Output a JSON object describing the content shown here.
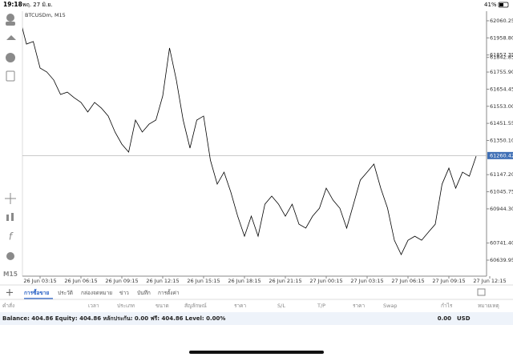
{
  "status_bar": {
    "time": "19:18",
    "date": "พฤ. 27 มิ.ย.",
    "battery": "41%"
  },
  "toolbar": {
    "timeframe": "M15"
  },
  "chart_data": {
    "type": "line",
    "title": "BTCUSDm, M15",
    "color": "#000000",
    "categories": [
      null,
      null,
      null,
      "26 Jun 03:15",
      null,
      null,
      null,
      null,
      null,
      "26 Jun 06:15",
      null,
      null,
      null,
      null,
      null,
      "26 Jun 09:15",
      null,
      null,
      null,
      null,
      null,
      "26 Jun 12:15",
      null,
      null,
      null,
      null,
      null,
      "26 Jun 15:15",
      null,
      null,
      null,
      null,
      null,
      "26 Jun 18:15",
      null,
      null,
      null,
      null,
      null,
      "26 Jun 21:15",
      null,
      null,
      null,
      null,
      null,
      "27 Jun 00:15",
      null,
      null,
      null,
      null,
      null,
      "27 Jun 03:15",
      null,
      null,
      null,
      null,
      null,
      "27 Jun 06:15",
      null,
      null,
      null,
      null,
      null,
      "27 Jun 09:15",
      null,
      null,
      null,
      null,
      null,
      "27 Jun 12:15"
    ],
    "values": [
      62079,
      61922,
      61937,
      61780,
      61756,
      61709,
      61623,
      61637,
      61604,
      61576,
      61519,
      61576,
      61542,
      61495,
      61400,
      61328,
      61281,
      61471,
      61400,
      61447,
      61471,
      61614,
      61899,
      61709,
      61471,
      61305,
      61471,
      61495,
      61233,
      61091,
      61162,
      61043,
      60901,
      60782,
      60901,
      60782,
      60972,
      61020,
      60972,
      60901,
      60972,
      60853,
      60830,
      60901,
      60948,
      61067,
      60996,
      60948,
      60830,
      60972,
      61115,
      61162,
      61210,
      61067,
      60948,
      60758,
      60673,
      60758,
      60782,
      60758,
      60806,
      60853,
      61091,
      61186,
      61067,
      61162,
      61138,
      61257,
      null,
      null
    ],
    "ylim": [
      60545,
      62117
    ],
    "yticks": [
      62060.25,
      {
        "value": 61958.8,
        "label": "61958.80"
      },
      61857.35,
      {
        "value": 61755.9,
        "label": "61755.90"
      },
      61654.45,
      {
        "value": 61553,
        "label": "61553.00"
      },
      61451.55,
      {
        "value": 61350.1,
        "label": "61350.10"
      },
      {
        "value": 61147.2,
        "label": "61147.20"
      },
      61045.75,
      {
        "value": 60944.3,
        "label": "60944.30"
      },
      61842.85,
      {
        "value": 60741.4,
        "label": "60741.40"
      },
      60639.95
    ],
    "current_price": 61260.42
  },
  "tabs": [
    "การซื้อขาย",
    "ประวัติ",
    "กล่องจดหมาย",
    "ข่าว",
    "บันทึก",
    "การตั้งค่า"
  ],
  "table": {
    "columns": [
      "คำสั่ง",
      "เวลา",
      "ประเภท",
      "ขนาด",
      "สัญลักษณ์",
      "ราคา",
      "S/L",
      "T/P",
      "ราคา",
      "Swap",
      "กำไร",
      "หมายเหตุ"
    ]
  },
  "balance": {
    "text": "Balance: 404.86 Equity: 404.86 หลักประกัน: 0.00 ฟรี: 404.86 Level: 0.00%",
    "profit": "0.00",
    "currency": "USD"
  }
}
